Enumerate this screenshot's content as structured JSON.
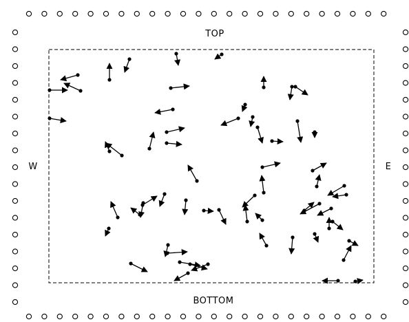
{
  "labels": {
    "top": "TOP",
    "bottom": "BOTTOM",
    "west": "W",
    "east": "E"
  },
  "colors": {
    "ink": "#000000",
    "paper": "#ffffff"
  }
}
